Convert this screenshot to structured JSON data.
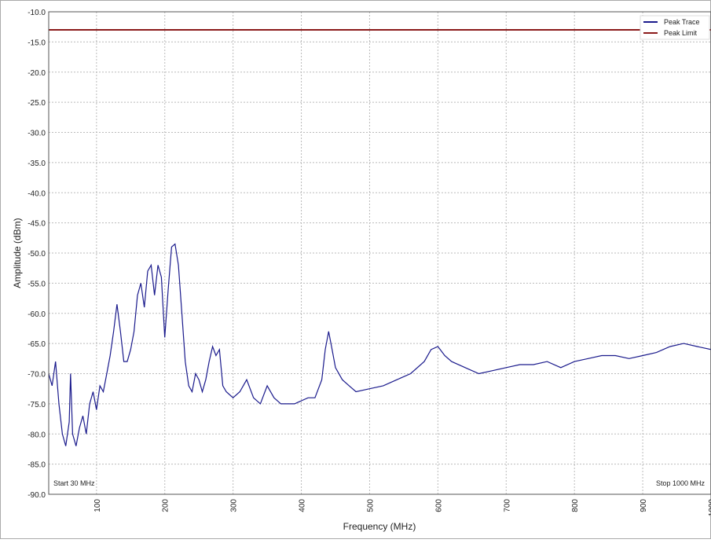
{
  "chart_data": {
    "type": "line",
    "x_label": "Frequency (MHz)",
    "y_label": "Amplitude (dBm)",
    "annotations": [
      "Start 30 MHz",
      "Stop 1000 MHz"
    ],
    "xlim": [
      30,
      1000
    ],
    "ylim": [
      -90,
      -10
    ],
    "xticks": [
      100,
      200,
      300,
      400,
      500,
      600,
      700,
      800,
      900,
      1000
    ],
    "yticks": [
      {
        "value": -10,
        "label": "-10.0"
      },
      {
        "value": -15,
        "label": "-15.0"
      },
      {
        "value": -20,
        "label": "-20.0"
      },
      {
        "value": -25,
        "label": "-25.0"
      },
      {
        "value": -30,
        "label": "-30.0"
      },
      {
        "value": -35,
        "label": "-35.0"
      },
      {
        "value": -40,
        "label": "-40.0"
      },
      {
        "value": -45,
        "label": "-45.0"
      },
      {
        "value": -50,
        "label": "-50.0"
      },
      {
        "value": -55,
        "label": "-55.0"
      },
      {
        "value": -60,
        "label": "-60.0"
      },
      {
        "value": -65,
        "label": "-65.0"
      },
      {
        "value": -70,
        "label": "-70.0"
      },
      {
        "value": -75,
        "label": "-75.0"
      },
      {
        "value": -80,
        "label": "-80.0"
      },
      {
        "value": -85,
        "label": "-85.0"
      },
      {
        "value": -90,
        "label": "-90.0"
      }
    ],
    "grid": true,
    "legend": "upper right",
    "series": [
      {
        "name": "Peak Trace",
        "color": "#1a1a8c",
        "x": [
          30,
          35,
          40,
          45,
          50,
          55,
          60,
          62,
          65,
          70,
          75,
          80,
          85,
          90,
          95,
          100,
          105,
          110,
          115,
          120,
          125,
          130,
          135,
          140,
          145,
          150,
          155,
          160,
          165,
          170,
          175,
          180,
          185,
          190,
          195,
          200,
          205,
          210,
          215,
          220,
          225,
          230,
          235,
          240,
          245,
          250,
          255,
          260,
          265,
          270,
          275,
          280,
          285,
          290,
          300,
          310,
          320,
          330,
          340,
          350,
          360,
          370,
          380,
          390,
          400,
          410,
          420,
          430,
          435,
          440,
          445,
          450,
          460,
          470,
          480,
          500,
          520,
          540,
          560,
          580,
          590,
          600,
          610,
          620,
          640,
          660,
          680,
          700,
          720,
          740,
          760,
          780,
          800,
          820,
          840,
          860,
          880,
          900,
          920,
          940,
          960,
          980,
          1000
        ],
        "values": [
          -70,
          -72,
          -68,
          -75,
          -80,
          -82,
          -78,
          -70,
          -80,
          -82,
          -79,
          -77,
          -80,
          -75,
          -73,
          -76,
          -72,
          -73,
          -70,
          -67,
          -63,
          -58.5,
          -63,
          -68,
          -68,
          -66,
          -63,
          -57,
          -55,
          -59,
          -53,
          -52,
          -57,
          -52,
          -54,
          -64,
          -56,
          -49,
          -48.5,
          -52,
          -60,
          -68,
          -72,
          -73,
          -70,
          -71,
          -73,
          -71,
          -68,
          -65.5,
          -67,
          -66,
          -72,
          -73,
          -74,
          -73,
          -71,
          -74,
          -75,
          -72,
          -74,
          -75,
          -75,
          -75,
          -74.5,
          -74,
          -74,
          -71,
          -66,
          -63,
          -66,
          -69,
          -71,
          -72,
          -73,
          -72.5,
          -72,
          -71,
          -70,
          -68,
          -66,
          -65.5,
          -67,
          -68,
          -69,
          -70,
          -69.5,
          -69,
          -68.5,
          -68.5,
          -68,
          -69,
          -68,
          -67.5,
          -67,
          -67,
          -67.5,
          -67,
          -66.5,
          -65.5,
          -65,
          -65.5,
          -66
        ]
      },
      {
        "name": "Peak Limit",
        "color": "#8b1a1a",
        "x": [
          30,
          1000
        ],
        "values": [
          -13,
          -13
        ]
      }
    ]
  }
}
